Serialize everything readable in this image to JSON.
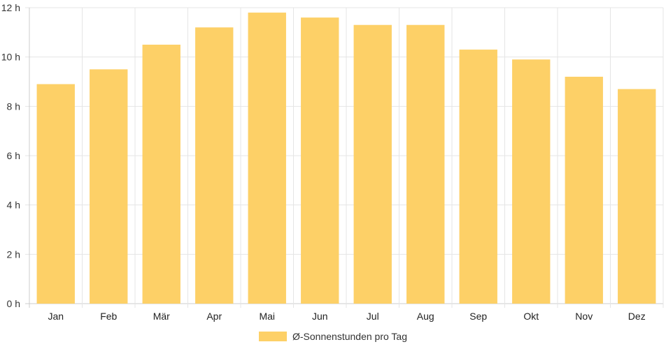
{
  "chart_data": {
    "type": "bar",
    "categories": [
      "Jan",
      "Feb",
      "Mär",
      "Apr",
      "Mai",
      "Jun",
      "Jul",
      "Aug",
      "Sep",
      "Okt",
      "Nov",
      "Dez"
    ],
    "series": [
      {
        "name": "Ø-Sonnenstunden pro Tag",
        "values": [
          8.9,
          9.5,
          10.5,
          11.2,
          11.8,
          11.6,
          11.3,
          11.3,
          10.3,
          9.9,
          9.2,
          8.7
        ]
      }
    ],
    "y_ticks": [
      "0 h",
      "2 h",
      "4 h",
      "6 h",
      "8 h",
      "10 h",
      "12 h"
    ],
    "ylim": [
      0,
      12
    ],
    "grid": true,
    "legend_position": "bottom",
    "colors": {
      "bar": "#fdd067",
      "grid": "#e5e5e5",
      "axis": "#cccccc"
    }
  }
}
